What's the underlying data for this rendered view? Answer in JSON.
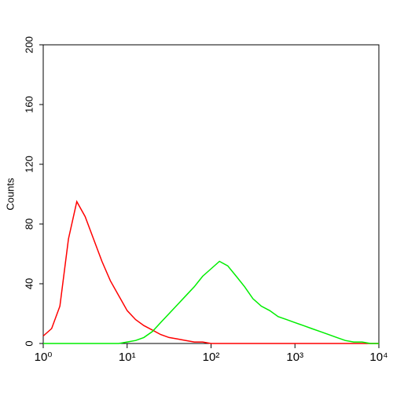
{
  "chart_data": {
    "type": "line",
    "y_label": "Counts",
    "xscale": "log",
    "x": [
      1,
      1.26,
      1.58,
      2,
      2.51,
      3.16,
      3.98,
      5.01,
      6.31,
      7.94,
      10,
      12.6,
      15.8,
      20,
      25.1,
      31.6,
      39.8,
      50.1,
      63.1,
      79.4,
      100,
      126,
      158,
      200,
      251,
      316,
      398,
      501,
      631,
      794,
      1000,
      1260,
      1580,
      2000,
      2510,
      3160,
      3980,
      5010,
      6310,
      7940,
      10000
    ],
    "series": [
      {
        "color": "#ff0000",
        "values": [
          5,
          10,
          25,
          70,
          95,
          85,
          70,
          55,
          42,
          32,
          22,
          16,
          12,
          9,
          6,
          4,
          3,
          2,
          1,
          1,
          0,
          0,
          0,
          0,
          0,
          0,
          0,
          0,
          0,
          0,
          0,
          0,
          0,
          0,
          0,
          0,
          0,
          0,
          0,
          0,
          0
        ]
      },
      {
        "color": "#00ee00",
        "values": [
          0,
          0,
          0,
          0,
          0,
          0,
          0,
          0,
          0,
          0,
          1,
          2,
          4,
          8,
          14,
          20,
          26,
          32,
          38,
          45,
          50,
          55,
          52,
          45,
          38,
          30,
          25,
          22,
          18,
          16,
          14,
          12,
          10,
          8,
          6,
          4,
          2,
          1,
          1,
          0,
          0
        ]
      }
    ],
    "xlim": [
      1,
      10000
    ],
    "xticks": [
      {
        "value": 1,
        "label": "10⁰"
      },
      {
        "value": 10,
        "label": "10¹"
      },
      {
        "value": 100,
        "label": "10²"
      },
      {
        "value": 1000,
        "label": "10³"
      },
      {
        "value": 10000,
        "label": "10⁴"
      }
    ],
    "ylim": [
      0,
      200
    ],
    "yticks": [
      0,
      40,
      80,
      120,
      160,
      200
    ]
  }
}
